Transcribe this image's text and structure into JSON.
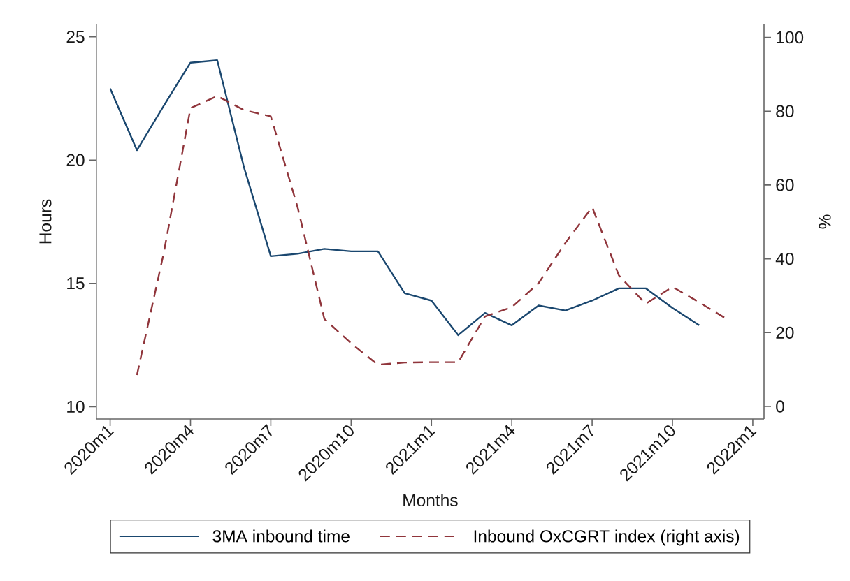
{
  "chart_data": {
    "type": "line",
    "xlabel": "Months",
    "ylabel": "Hours",
    "y2label": "%",
    "x": [
      "2020-01",
      "2020-02",
      "2020-03",
      "2020-04",
      "2020-05",
      "2020-06",
      "2020-07",
      "2020-08",
      "2020-09",
      "2020-10",
      "2020-11",
      "2020-12",
      "2021-01",
      "2021-02",
      "2021-03",
      "2021-04",
      "2021-05",
      "2021-06",
      "2021-07",
      "2021-08",
      "2021-09",
      "2021-10",
      "2021-11",
      "2021-12"
    ],
    "xlim": [
      "2019-12-16",
      "2022-01-14"
    ],
    "xticks": [
      {
        "value": "2020-01",
        "label": "2020m1"
      },
      {
        "value": "2020-04",
        "label": "2020m4"
      },
      {
        "value": "2020-07",
        "label": "2020m7"
      },
      {
        "value": "2020-10",
        "label": "2020m10"
      },
      {
        "value": "2021-01",
        "label": "2021m1"
      },
      {
        "value": "2021-04",
        "label": "2021m4"
      },
      {
        "value": "2021-07",
        "label": "2021m7"
      },
      {
        "value": "2021-10",
        "label": "2021m10"
      },
      {
        "value": "2022-01",
        "label": "2022m1"
      }
    ],
    "ylim": [
      9.5,
      25.5
    ],
    "yticks": [
      10,
      15,
      20,
      25
    ],
    "y2lim": [
      -3.4,
      103.5
    ],
    "y2ticks": [
      0,
      20,
      40,
      60,
      80,
      100
    ],
    "series": [
      {
        "name": "3MA inbound time",
        "color": "#1a476f",
        "line_style": "solid",
        "values": [
          22.9,
          20.4,
          22.2,
          23.95,
          24.05,
          19.7,
          16.1,
          16.2,
          16.4,
          16.3,
          16.3,
          14.6,
          14.3,
          12.9,
          13.8,
          13.3,
          14.1,
          13.9,
          14.3,
          14.8,
          14.8,
          14.0,
          13.3,
          null
        ]
      },
      {
        "name": "Inbound OxCGRT index (right axis)",
        "color": "#90353b",
        "line_style": "dashed",
        "axis": "y2",
        "values": [
          null,
          8.5,
          41.5,
          80.8,
          84.1,
          80.3,
          78.6,
          54,
          23.7,
          17.1,
          11.3,
          11.9,
          12,
          12,
          24.4,
          26.9,
          33.4,
          44.3,
          54,
          35.5,
          27.8,
          32.4,
          28.2,
          23.8
        ]
      }
    ],
    "legend": "bottom"
  }
}
